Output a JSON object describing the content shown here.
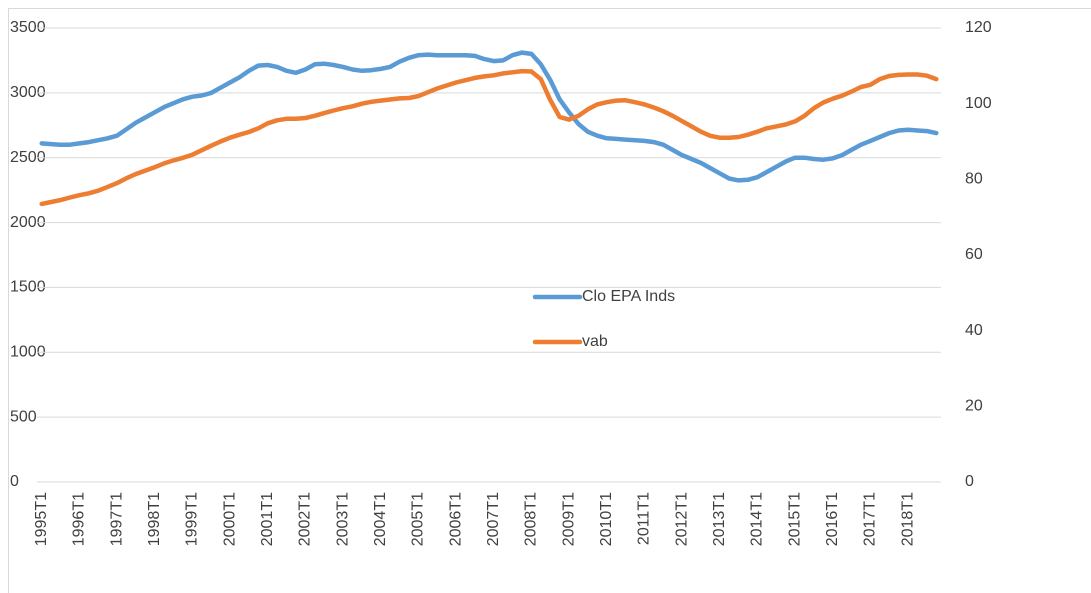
{
  "chart_data": {
    "type": "line",
    "categories": [
      "1995T1",
      null,
      null,
      null,
      "1996T1",
      null,
      null,
      null,
      "1997T1",
      null,
      null,
      null,
      "1998T1",
      null,
      null,
      null,
      "1999T1",
      null,
      null,
      null,
      "2000T1",
      null,
      null,
      null,
      "2001T1",
      null,
      null,
      null,
      "2002T1",
      null,
      null,
      null,
      "2003T1",
      null,
      null,
      null,
      "2004T1",
      null,
      null,
      null,
      "2005T1",
      null,
      null,
      null,
      "2006T1",
      null,
      null,
      null,
      "2007T1",
      null,
      null,
      null,
      "2008T1",
      null,
      null,
      null,
      "2009T1",
      null,
      null,
      null,
      "2010T1",
      null,
      null,
      null,
      "2011T1",
      null,
      null,
      null,
      "2012T1",
      null,
      null,
      null,
      "2013T1",
      null,
      null,
      null,
      "2014T1",
      null,
      null,
      null,
      "2015T1",
      null,
      null,
      null,
      "2016T1",
      null,
      null,
      null,
      "2017T1",
      null,
      null,
      null,
      "2018T1",
      null,
      null,
      null
    ],
    "series": [
      {
        "name": "Clo EPA Inds",
        "color": "#5b9bd5",
        "values": [
          2610,
          2605,
          2600,
          2600,
          2610,
          2620,
          2635,
          2650,
          2670,
          2720,
          2770,
          2810,
          2850,
          2890,
          2920,
          2950,
          2970,
          2980,
          3000,
          3040,
          3080,
          3120,
          3170,
          3210,
          3215,
          3200,
          3170,
          3155,
          3180,
          3220,
          3225,
          3215,
          3200,
          3180,
          3170,
          3175,
          3185,
          3200,
          3240,
          3270,
          3290,
          3295,
          3290,
          3290,
          3290,
          3290,
          3285,
          3260,
          3245,
          3250,
          3290,
          3310,
          3300,
          3220,
          3100,
          2950,
          2850,
          2760,
          2700,
          2670,
          2650,
          2645,
          2640,
          2635,
          2630,
          2620,
          2600,
          2560,
          2520,
          2490,
          2460,
          2420,
          2380,
          2340,
          2325,
          2330,
          2350,
          2390,
          2430,
          2470,
          2500,
          2500,
          2490,
          2485,
          2495,
          2520,
          2560,
          2600,
          2630,
          2660,
          2690,
          2710,
          2715,
          2710,
          2705,
          2690
        ]
      },
      {
        "name": "vab",
        "color": "#ed7d31",
        "axis": "y2",
        "values": [
          73.5,
          74,
          74.5,
          75.2,
          75.8,
          76.3,
          77,
          78,
          79,
          80.3,
          81.4,
          82.3,
          83.2,
          84.2,
          85,
          85.7,
          86.5,
          87.7,
          88.9,
          90,
          91,
          91.8,
          92.5,
          93.5,
          94.8,
          95.6,
          96,
          96,
          96.2,
          96.8,
          97.5,
          98.2,
          98.8,
          99.3,
          100,
          100.5,
          100.8,
          101.1,
          101.4,
          101.5,
          102,
          103,
          104,
          104.8,
          105.6,
          106.2,
          106.8,
          107.2,
          107.5,
          108,
          108.3,
          108.6,
          108.5,
          106.5,
          101,
          96.5,
          95.8,
          96.8,
          98.5,
          99.8,
          100.4,
          100.8,
          100.9,
          100.4,
          99.8,
          99,
          98,
          96.8,
          95.4,
          94,
          92.6,
          91.5,
          91,
          91,
          91.2,
          91.8,
          92.6,
          93.5,
          94,
          94.5,
          95.3,
          96.8,
          98.8,
          100.3,
          101.3,
          102.1,
          103.2,
          104.4,
          105,
          106.5,
          107.3,
          107.6,
          107.7,
          107.7,
          107.4,
          106.5
        ]
      }
    ],
    "ylim": [
      0,
      3500
    ],
    "yticks": [
      0,
      500,
      1000,
      1500,
      2000,
      2500,
      3000,
      3500
    ],
    "y2lim": [
      0,
      120
    ],
    "y2ticks": [
      0,
      20,
      40,
      60,
      80,
      100,
      120
    ],
    "grid": true
  }
}
